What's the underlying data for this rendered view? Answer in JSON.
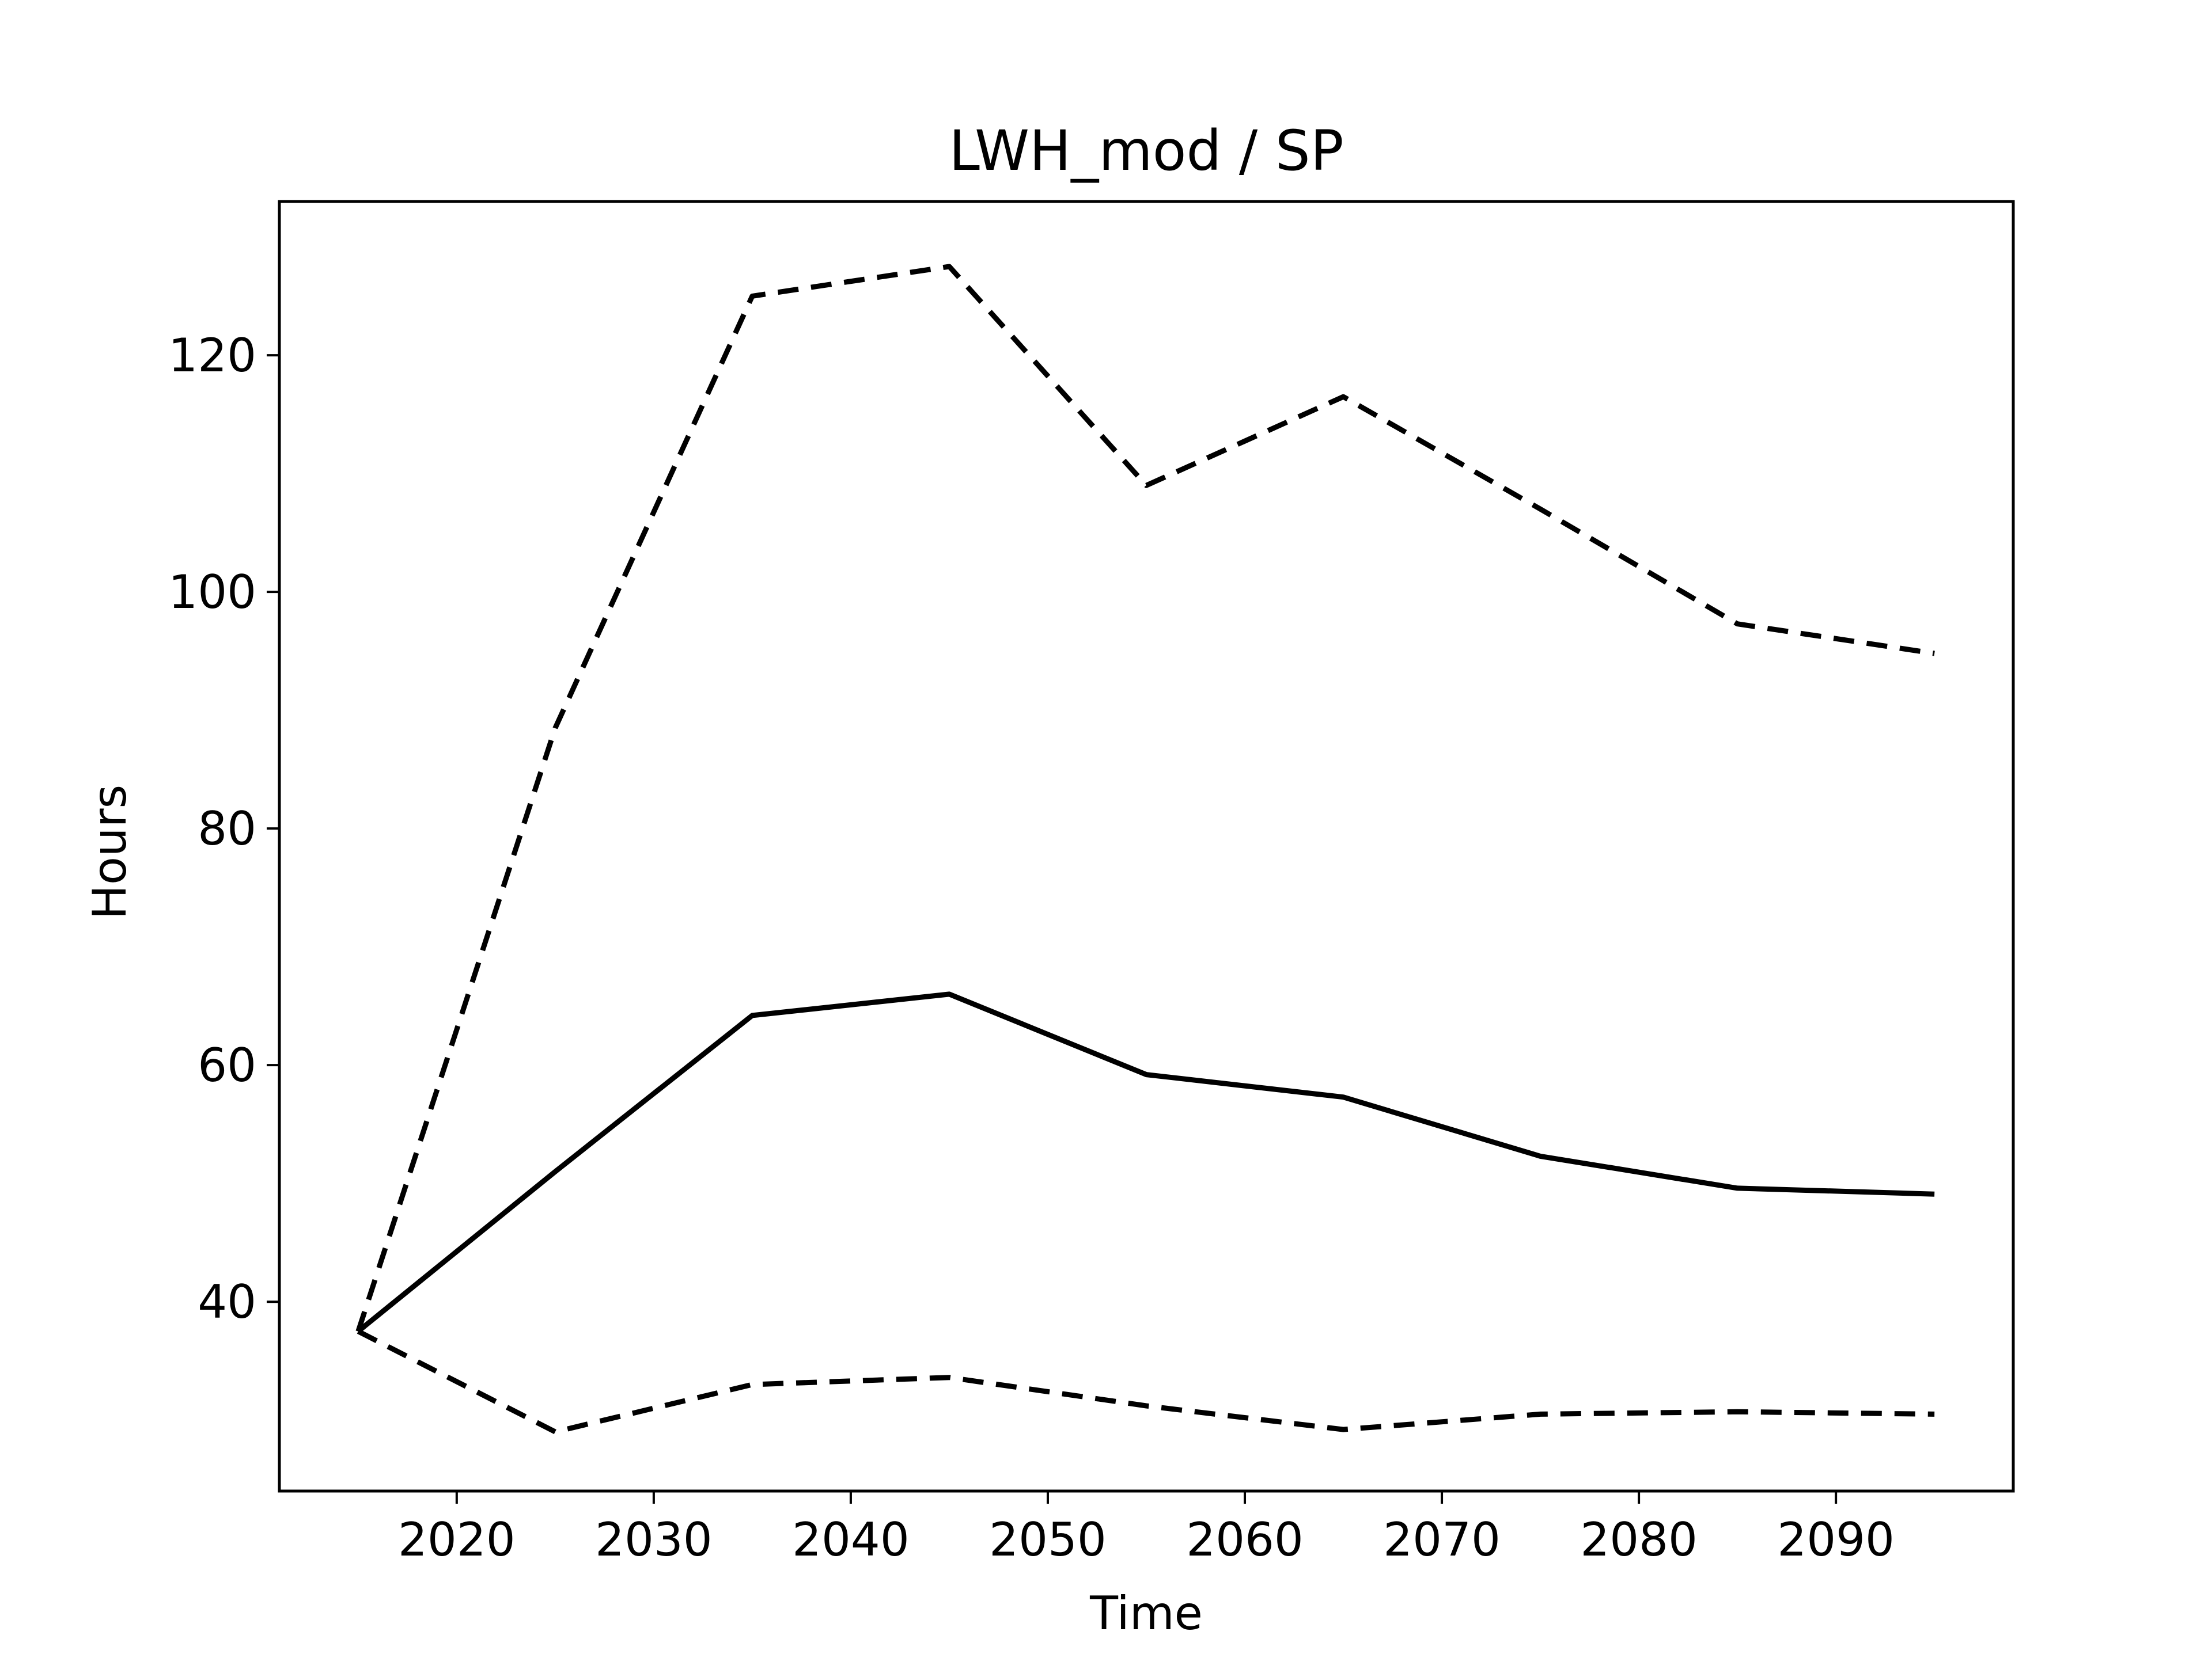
{
  "chart_data": {
    "type": "line",
    "title": "LWH_mod / SP",
    "xlabel": "Time",
    "ylabel": "Hours",
    "xlim": [
      2011,
      2099
    ],
    "ylim": [
      24,
      133
    ],
    "xticks": [
      2020,
      2030,
      2040,
      2050,
      2060,
      2070,
      2080,
      2090
    ],
    "yticks": [
      40,
      60,
      80,
      100,
      120
    ],
    "grid": false,
    "legend": "none",
    "x": [
      2015,
      2025,
      2035,
      2045,
      2055,
      2065,
      2075,
      2085,
      2095
    ],
    "series": [
      {
        "values": [
          37.5,
          88.5,
          125.0,
          127.5,
          109.0,
          116.5,
          107.0,
          97.3,
          94.8
        ],
        "style": "dashed",
        "color": "#000000"
      },
      {
        "values": [
          37.5,
          51.0,
          64.2,
          66.0,
          59.2,
          57.3,
          52.3,
          49.6,
          49.1
        ],
        "style": "solid",
        "color": "#000000"
      },
      {
        "values": [
          37.5,
          29.0,
          33.0,
          33.6,
          31.2,
          29.2,
          30.5,
          30.7,
          30.5
        ],
        "style": "dashed",
        "color": "#000000"
      }
    ]
  }
}
